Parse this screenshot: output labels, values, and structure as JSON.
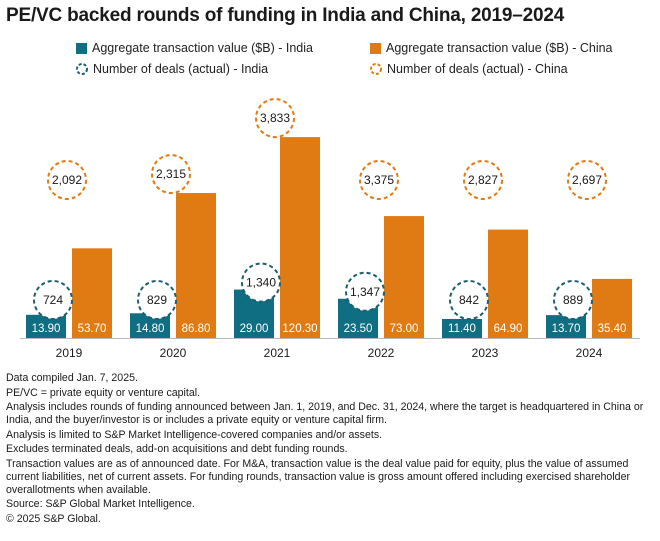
{
  "title": "PE/VC backed rounds of funding in India and China, 2019–2024",
  "legend": {
    "india_value": "Aggregate transaction value ($B) - India",
    "china_value": "Aggregate transaction value ($B) - China",
    "india_deals": "Number of deals (actual) - India",
    "china_deals": "Number of deals (actual) - China"
  },
  "colors": {
    "india": "#0f6e82",
    "china": "#e07b14",
    "india_dash": "#1b5f70",
    "china_dash": "#e07b14"
  },
  "chart_data": {
    "type": "bar",
    "categories": [
      "2019",
      "2020",
      "2021",
      "2022",
      "2023",
      "2024"
    ],
    "series": [
      {
        "name": "Aggregate transaction value ($B) - India",
        "values": [
          13.9,
          14.8,
          29.0,
          23.5,
          11.4,
          13.7
        ],
        "labels": [
          "13.90",
          "14.80",
          "29.00",
          "23.50",
          "11.40",
          "13.70"
        ]
      },
      {
        "name": "Aggregate transaction value ($B) - China",
        "values": [
          53.7,
          86.8,
          120.3,
          73.0,
          64.9,
          35.4
        ],
        "labels": [
          "53.70",
          "86.80",
          "120.30",
          "73.00",
          "64.90",
          "35.40"
        ]
      }
    ],
    "deals": [
      {
        "name": "Number of deals (actual) - India",
        "values": [
          724,
          829,
          1340,
          1347,
          842,
          889
        ],
        "labels": [
          "724",
          "829",
          "1,340",
          "1,347",
          "842",
          "889"
        ]
      },
      {
        "name": "Number of deals (actual) - China",
        "values": [
          2092,
          2315,
          3833,
          3375,
          2827,
          2697
        ],
        "labels": [
          "2,092",
          "2,315",
          "3,833",
          "3,375",
          "2,827",
          "2,697"
        ]
      }
    ],
    "ylim": [
      0,
      130
    ]
  },
  "notes": [
    "Data compiled Jan. 7, 2025.",
    "PE/VC = private equity or venture capital.",
    "Analysis includes rounds of funding announced between Jan. 1, 2019, and Dec. 31, 2024, where the target is headquartered in China or India, and the buyer/investor is or includes a private equity or venture capital firm.",
    "Analysis is limited to S&P Market Intelligence-covered companies and/or assets.",
    "Excludes terminated deals, add-on acquisitions and debt funding rounds.",
    "Transaction values are as of announced date. For M&A, transaction value is the deal value paid for equity, plus the value of assumed current liabilities, net of current assets. For funding rounds, transaction value is gross amount offered including exercised shareholder overallotments when available.",
    "Source: S&P Global Market Intelligence.",
    "© 2025 S&P Global."
  ]
}
